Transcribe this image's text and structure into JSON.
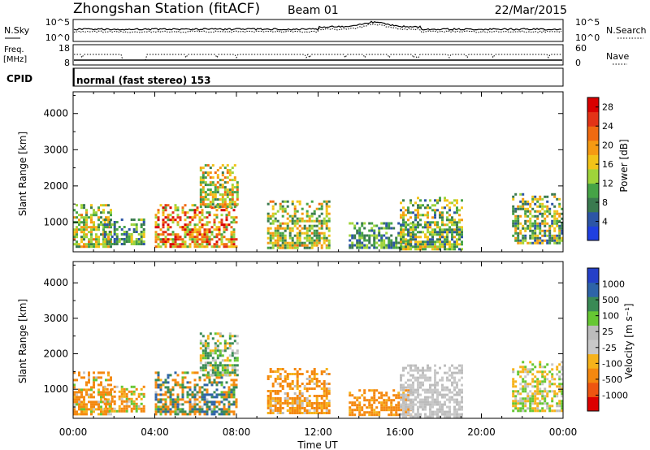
{
  "header": {
    "station": "Zhongshan Station (fitACF)",
    "beam": "Beam 01",
    "date": "22/Mar/2015"
  },
  "mini_panels": {
    "nsky_label": "N.Sky",
    "nsearch_label": "N.Search",
    "noise_ticks": [
      "10^5",
      "10^0"
    ],
    "freq_label": "Freq.",
    "freq_unit": "[MHz]",
    "freq_ticks": [
      "18",
      "8"
    ],
    "nave_label": "Nave",
    "nave_ticks": [
      "60",
      "0"
    ],
    "cpid_label": "CPID",
    "cpid_text": "normal (fast stereo) 153"
  },
  "colors": {
    "power_scale": [
      "#1f3fe0",
      "#2c55a6",
      "#3a7a4f",
      "#46a346",
      "#9fd43a",
      "#f2c318",
      "#f59a12",
      "#f06a10",
      "#e33316",
      "#d90000"
    ],
    "velocity_scale": [
      "#dd0000",
      "#ee5511",
      "#f4880f",
      "#f6b21a",
      "#c8c8c8",
      "#bcbcbc",
      "#66c733",
      "#3a8a55",
      "#2e64a8",
      "#2540c8"
    ]
  },
  "chart_data": [
    {
      "type": "heatmap",
      "title": "",
      "quantity": "Power",
      "xlabel": "",
      "ylabel": "Slant Range [km]",
      "xlim_hours": [
        0,
        24
      ],
      "ylim_km": [
        180,
        4600
      ],
      "yticks": [
        "1000",
        "2000",
        "3000",
        "4000"
      ],
      "colorbar_label": "Power [dB]",
      "colorbar_ticks": [
        "4",
        "8",
        "12",
        "16",
        "20",
        "24",
        "28"
      ],
      "colorbar_range": [
        0,
        30
      ],
      "clusters": [
        {
          "t": [
            0.0,
            1.8
          ],
          "r": [
            300,
            1500
          ],
          "level": [
            8,
            22
          ]
        },
        {
          "t": [
            1.5,
            3.5
          ],
          "r": [
            400,
            1100
          ],
          "level": [
            4,
            16
          ]
        },
        {
          "t": [
            4.0,
            8.0
          ],
          "r": [
            300,
            1500
          ],
          "level": [
            10,
            30
          ]
        },
        {
          "t": [
            6.2,
            8.0
          ],
          "r": [
            1400,
            2600
          ],
          "level": [
            8,
            22
          ]
        },
        {
          "t": [
            9.5,
            12.5
          ],
          "r": [
            300,
            1600
          ],
          "level": [
            6,
            22
          ]
        },
        {
          "t": [
            13.5,
            16.5
          ],
          "r": [
            300,
            1000
          ],
          "level": [
            4,
            14
          ]
        },
        {
          "t": [
            16.0,
            19.0
          ],
          "r": [
            250,
            1700
          ],
          "level": [
            4,
            20
          ]
        },
        {
          "t": [
            21.5,
            24.0
          ],
          "r": [
            400,
            1800
          ],
          "level": [
            4,
            20
          ]
        }
      ]
    },
    {
      "type": "heatmap",
      "title": "",
      "quantity": "Velocity",
      "xlabel": "Time UT",
      "ylabel": "Slant Range [km]",
      "xlim_hours": [
        0,
        24
      ],
      "ylim_km": [
        180,
        4600
      ],
      "yticks": [
        "1000",
        "2000",
        "3000",
        "4000"
      ],
      "xticks": [
        "00:00",
        "04:00",
        "08:00",
        "12:00",
        "16:00",
        "20:00",
        "00:00"
      ],
      "colorbar_label": "Velocity [m s⁻¹]",
      "colorbar_ticks": [
        "-1000",
        "-500",
        "-100",
        "-25",
        "25",
        "100",
        "500",
        "1000"
      ],
      "colorbar_range": [
        -1000,
        1000
      ],
      "clusters": [
        {
          "t": [
            0.0,
            1.8
          ],
          "r": [
            300,
            1500
          ],
          "level": [
            -500,
            100
          ]
        },
        {
          "t": [
            1.5,
            3.5
          ],
          "r": [
            400,
            1100
          ],
          "level": [
            -300,
            100
          ]
        },
        {
          "t": [
            4.0,
            8.0
          ],
          "r": [
            300,
            1500
          ],
          "level": [
            -500,
            800
          ]
        },
        {
          "t": [
            6.2,
            8.0
          ],
          "r": [
            1400,
            2600
          ],
          "level": [
            -100,
            200
          ]
        },
        {
          "t": [
            9.5,
            12.5
          ],
          "r": [
            300,
            1600
          ],
          "level": [
            -300,
            25
          ]
        },
        {
          "t": [
            13.5,
            16.5
          ],
          "r": [
            300,
            1000
          ],
          "level": [
            -500,
            -25
          ]
        },
        {
          "t": [
            16.0,
            19.0
          ],
          "r": [
            250,
            1700
          ],
          "level": [
            -25,
            25
          ]
        },
        {
          "t": [
            21.5,
            24.0
          ],
          "r": [
            400,
            1800
          ],
          "level": [
            -100,
            100
          ]
        }
      ]
    }
  ]
}
